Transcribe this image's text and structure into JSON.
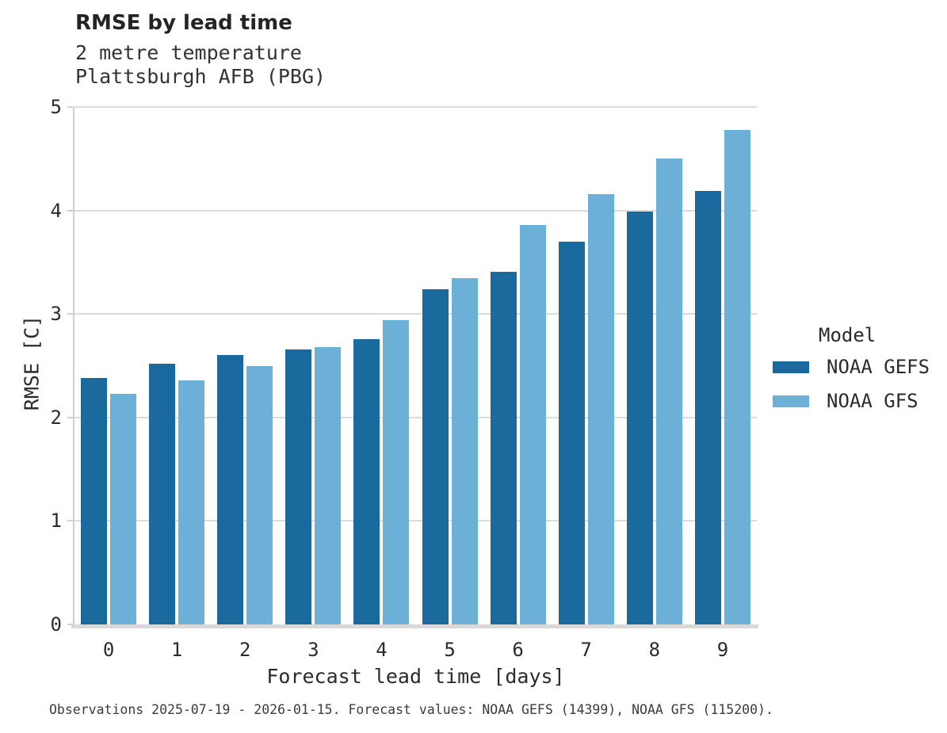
{
  "header": {
    "title": "RMSE by lead time",
    "subtitle_line1": "2 metre temperature",
    "subtitle_line2": "Plattsburgh AFB (PBG)"
  },
  "chart_data": {
    "type": "bar",
    "categories": [
      0,
      1,
      2,
      3,
      4,
      5,
      6,
      7,
      8,
      9
    ],
    "series": [
      {
        "name": "NOAA GEFS",
        "color": "#1a6a9d",
        "values": [
          2.38,
          2.52,
          2.6,
          2.66,
          2.76,
          3.24,
          3.41,
          3.7,
          3.99,
          4.19
        ]
      },
      {
        "name": "NOAA GFS",
        "color": "#6cb0d8",
        "values": [
          2.23,
          2.36,
          2.5,
          2.68,
          2.94,
          3.35,
          3.86,
          4.16,
          4.5,
          4.78
        ]
      }
    ],
    "xlabel": "Forecast lead time [days]",
    "ylabel": "RMSE [C]",
    "ylim": [
      0,
      5
    ],
    "yticks": [
      0,
      1,
      2,
      3,
      4,
      5
    ],
    "legend_title": "Model",
    "legend_position": "right",
    "grid": "horizontal"
  },
  "footnote": "Observations 2025-07-19 - 2026-01-15. Forecast values: NOAA GEFS (14399), NOAA GFS (115200)."
}
